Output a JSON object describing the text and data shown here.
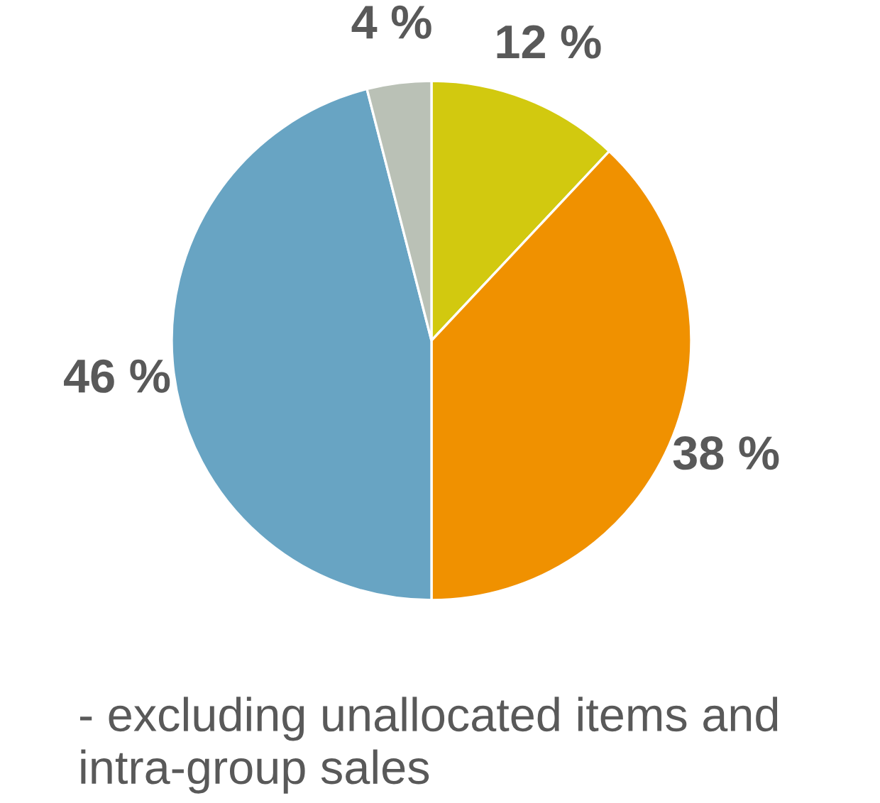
{
  "chart_data": {
    "type": "pie",
    "categories": [
      null,
      null,
      null,
      null
    ],
    "values": [
      12,
      38,
      46,
      4
    ],
    "colors": [
      "#d2c90f",
      "#f09100",
      "#68a4c3",
      "#bac1b6"
    ],
    "value_labels": [
      "12 %",
      "38 %",
      "46 %",
      "4 %"
    ],
    "annotations": [
      "- excluding unallocated items and intra-group sales"
    ]
  }
}
